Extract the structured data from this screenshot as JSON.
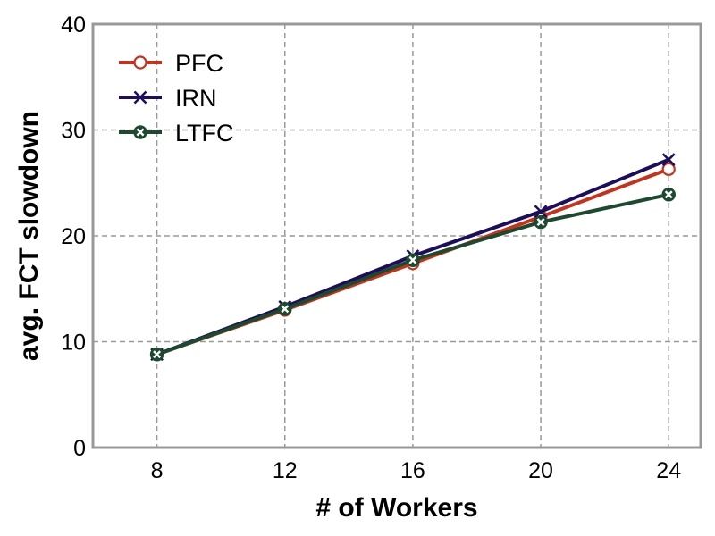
{
  "chart_data": {
    "type": "line",
    "xlabel": "# of Workers",
    "ylabel": "avg. FCT slowdown",
    "x": [
      8,
      12,
      16,
      20,
      24
    ],
    "x_ticks": [
      "8",
      "12",
      "16",
      "20",
      "24"
    ],
    "y_ticks": [
      "0",
      "10",
      "20",
      "30",
      "40"
    ],
    "xlim": [
      6,
      25
    ],
    "ylim": [
      0,
      40
    ],
    "grid": true,
    "legend_position": "top-left",
    "series": [
      {
        "name": "PFC",
        "values": [
          8.8,
          13.0,
          17.4,
          21.8,
          26.3
        ],
        "color": "#c8311a",
        "marker": "circle"
      },
      {
        "name": "IRN",
        "values": [
          8.8,
          13.3,
          18.1,
          22.3,
          27.2
        ],
        "color": "#1c0d5e",
        "marker": "x"
      },
      {
        "name": "LTFC",
        "values": [
          8.8,
          13.1,
          17.7,
          21.3,
          23.9
        ],
        "color": "#1c4a2e",
        "marker": "circle-x"
      }
    ]
  }
}
